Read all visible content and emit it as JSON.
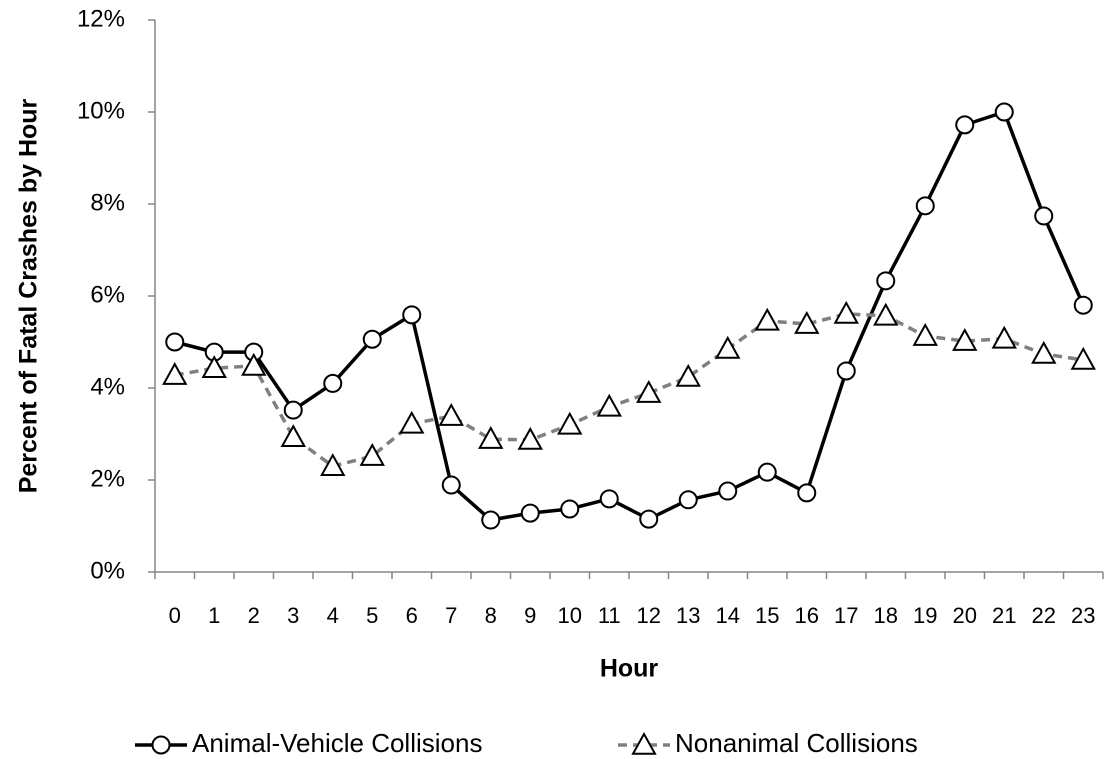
{
  "chart_data": {
    "type": "line",
    "y_axis_label": "Percent of Fatal Crashes by Hour",
    "x_axis_label": "Hour",
    "categories": [
      "0",
      "1",
      "2",
      "3",
      "4",
      "5",
      "6",
      "7",
      "8",
      "9",
      "10",
      "11",
      "12",
      "13",
      "14",
      "15",
      "16",
      "17",
      "18",
      "19",
      "20",
      "21",
      "22",
      "23"
    ],
    "series": [
      {
        "name": "Animal-Vehicle Collisions",
        "color": "#000000",
        "marker": "circle",
        "dashed": false,
        "values": [
          5.0,
          4.78,
          4.78,
          3.52,
          4.1,
          5.06,
          5.59,
          1.89,
          1.13,
          1.28,
          1.37,
          1.59,
          1.15,
          1.57,
          1.76,
          2.17,
          1.72,
          4.37,
          6.33,
          7.96,
          9.72,
          10.0,
          7.74,
          5.8
        ]
      },
      {
        "name": "Nonanimal Collisions",
        "color": "#808080",
        "marker": "triangle",
        "dashed": true,
        "values": [
          4.28,
          4.43,
          4.48,
          2.93,
          2.3,
          2.52,
          3.22,
          3.39,
          2.89,
          2.87,
          3.2,
          3.59,
          3.89,
          4.24,
          4.85,
          5.46,
          5.39,
          5.61,
          5.57,
          5.13,
          5.02,
          5.07,
          4.74,
          4.61
        ]
      }
    ],
    "ylim": [
      0,
      12
    ],
    "yticks": [
      {
        "value": 0,
        "label": "0%"
      },
      {
        "value": 2,
        "label": "2%"
      },
      {
        "value": 4,
        "label": "4%"
      },
      {
        "value": 6,
        "label": "6%"
      },
      {
        "value": 8,
        "label": "8%"
      },
      {
        "value": 10,
        "label": "10%"
      },
      {
        "value": 12,
        "label": "12%"
      }
    ],
    "grid": false,
    "legend": "bottom"
  }
}
